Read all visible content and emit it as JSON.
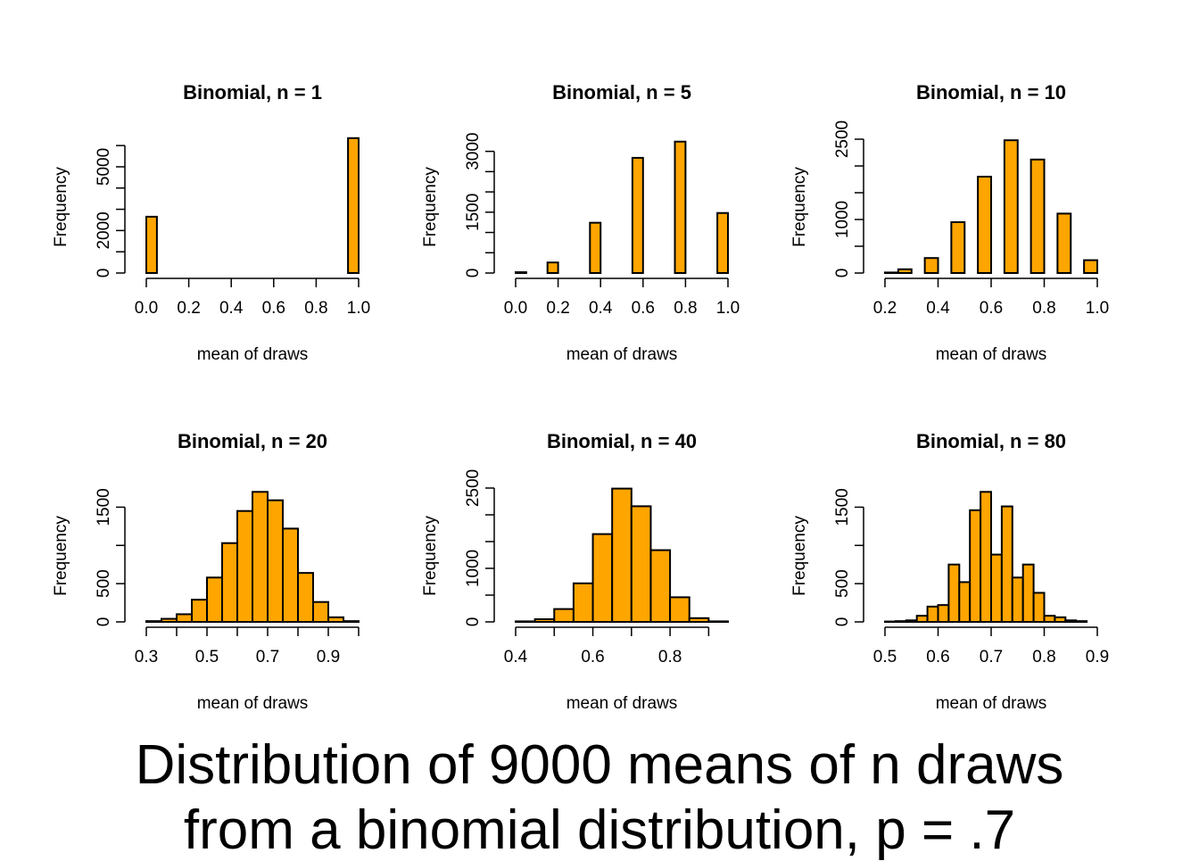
{
  "caption": {
    "line1": "Distribution of 9000 means of n draws",
    "line2": "from a binomial distribution, p = .7"
  },
  "style": {
    "bar_fill": "#FFA500",
    "bar_stroke": "#000000"
  },
  "chart_data": [
    {
      "type": "bar",
      "title": "Binomial, n = 1",
      "xlabel": "mean of draws",
      "ylabel": "Frequency",
      "xlim": [
        0,
        1
      ],
      "ylim": [
        0,
        6300
      ],
      "xticks": [
        "0.0",
        "0.2",
        "0.4",
        "0.6",
        "0.8",
        "1.0"
      ],
      "xtick_values": [
        0,
        0.2,
        0.4,
        0.6,
        0.8,
        1.0
      ],
      "yticks": [
        "0",
        "2000",
        "5000"
      ],
      "ytick_values": [
        0,
        1000,
        2000,
        3000,
        4000,
        5000,
        6000
      ],
      "bin_edges": [
        0,
        0.05,
        0.1,
        0.15,
        0.2,
        0.25,
        0.3,
        0.35,
        0.4,
        0.45,
        0.5,
        0.55,
        0.6,
        0.65,
        0.7,
        0.75,
        0.8,
        0.85,
        0.9,
        0.95,
        1.0
      ],
      "values": [
        2650,
        0,
        0,
        0,
        0,
        0,
        0,
        0,
        0,
        0,
        0,
        0,
        0,
        0,
        0,
        0,
        0,
        0,
        0,
        6350
      ]
    },
    {
      "type": "bar",
      "title": "Binomial, n = 5",
      "xlabel": "mean of draws",
      "ylabel": "Frequency",
      "xlim": [
        0,
        1
      ],
      "ylim": [
        0,
        3300
      ],
      "xticks": [
        "0.0",
        "0.2",
        "0.4",
        "0.6",
        "0.8",
        "1.0"
      ],
      "xtick_values": [
        0,
        0.2,
        0.4,
        0.6,
        0.8,
        1.0
      ],
      "yticks": [
        "0",
        "1500",
        "3000"
      ],
      "ytick_values": [
        0,
        500,
        1000,
        1500,
        2000,
        2500,
        3000
      ],
      "bin_edges": [
        0,
        0.05,
        0.1,
        0.15,
        0.2,
        0.25,
        0.3,
        0.35,
        0.4,
        0.45,
        0.5,
        0.55,
        0.6,
        0.65,
        0.7,
        0.75,
        0.8,
        0.85,
        0.9,
        0.95,
        1.0
      ],
      "values": [
        20,
        0,
        0,
        260,
        0,
        0,
        0,
        1240,
        0,
        0,
        0,
        2840,
        0,
        0,
        0,
        3240,
        0,
        0,
        0,
        1480
      ]
    },
    {
      "type": "bar",
      "title": "Binomial, n = 10",
      "xlabel": "mean of draws",
      "ylabel": "Frequency",
      "xlim": [
        0.2,
        1
      ],
      "ylim": [
        0,
        2500
      ],
      "xticks": [
        "0.2",
        "0.4",
        "0.6",
        "0.8",
        "1.0"
      ],
      "xtick_values": [
        0.2,
        0.4,
        0.6,
        0.8,
        1.0
      ],
      "yticks": [
        "0",
        "1000",
        "2500"
      ],
      "ytick_values": [
        0,
        500,
        1000,
        1500,
        2000,
        2500
      ],
      "bin_edges": [
        0.2,
        0.25,
        0.3,
        0.35,
        0.4,
        0.45,
        0.5,
        0.55,
        0.6,
        0.65,
        0.7,
        0.75,
        0.8,
        0.85,
        0.9,
        0.95,
        1.0
      ],
      "values": [
        10,
        70,
        0,
        280,
        0,
        950,
        0,
        1800,
        0,
        2480,
        0,
        2120,
        0,
        1110,
        0,
        240
      ]
    },
    {
      "type": "bar",
      "title": "Binomial, n = 20",
      "xlabel": "mean of draws",
      "ylabel": "Frequency",
      "xlim": [
        0.3,
        1
      ],
      "ylim": [
        0,
        1750
      ],
      "xticks": [
        "0.3",
        "0.5",
        "0.7",
        "0.9"
      ],
      "xtick_values": [
        0.3,
        0.4,
        0.5,
        0.6,
        0.7,
        0.8,
        0.9,
        1.0
      ],
      "yticks": [
        "0",
        "500",
        "1500"
      ],
      "ytick_values": [
        0,
        500,
        1000,
        1500
      ],
      "bin_edges": [
        0.3,
        0.35,
        0.4,
        0.45,
        0.5,
        0.55,
        0.6,
        0.65,
        0.7,
        0.75,
        0.8,
        0.85,
        0.9,
        0.95,
        1.0
      ],
      "values": [
        10,
        40,
        100,
        290,
        580,
        1030,
        1450,
        1700,
        1590,
        1220,
        640,
        260,
        60,
        10
      ]
    },
    {
      "type": "bar",
      "title": "Binomial, n = 40",
      "xlabel": "mean of draws",
      "ylabel": "Frequency",
      "xlim": [
        0.4,
        0.95
      ],
      "ylim": [
        0,
        2500
      ],
      "xticks": [
        "0.4",
        "0.6",
        "0.8"
      ],
      "xtick_values": [
        0.4,
        0.5,
        0.6,
        0.7,
        0.8,
        0.9
      ],
      "yticks": [
        "0",
        "1000",
        "2500"
      ],
      "ytick_values": [
        0,
        500,
        1000,
        1500,
        2000,
        2500
      ],
      "bin_edges": [
        0.4,
        0.45,
        0.5,
        0.55,
        0.6,
        0.65,
        0.7,
        0.75,
        0.8,
        0.85,
        0.9,
        0.95
      ],
      "values": [
        10,
        50,
        240,
        720,
        1640,
        2490,
        2160,
        1340,
        460,
        70,
        10
      ]
    },
    {
      "type": "bar",
      "title": "Binomial, n = 80",
      "xlabel": "mean of draws",
      "ylabel": "Frequency",
      "xlim": [
        0.5,
        0.9
      ],
      "ylim": [
        0,
        1750
      ],
      "xticks": [
        "0.5",
        "0.6",
        "0.7",
        "0.8",
        "0.9"
      ],
      "xtick_values": [
        0.5,
        0.6,
        0.7,
        0.8,
        0.9
      ],
      "yticks": [
        "0",
        "500",
        "1500"
      ],
      "ytick_values": [
        0,
        500,
        1000,
        1500
      ],
      "bin_edges": [
        0.5,
        0.52,
        0.54,
        0.56,
        0.58,
        0.6,
        0.62,
        0.64,
        0.66,
        0.68,
        0.7,
        0.72,
        0.74,
        0.76,
        0.78,
        0.8,
        0.82,
        0.84,
        0.86,
        0.88,
        0.9
      ],
      "values": [
        5,
        10,
        20,
        80,
        200,
        220,
        750,
        520,
        1460,
        1700,
        880,
        1510,
        580,
        750,
        380,
        80,
        60,
        20,
        10,
        0
      ]
    }
  ]
}
